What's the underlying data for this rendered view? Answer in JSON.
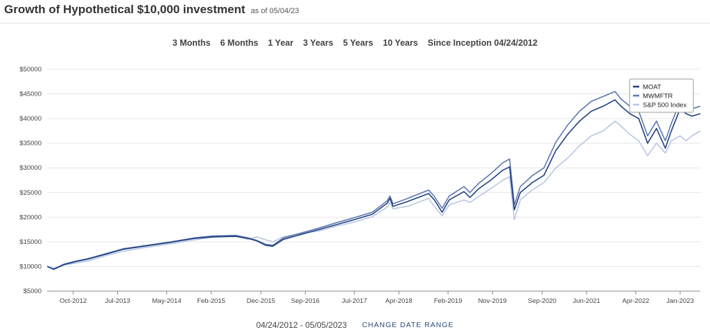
{
  "header": {
    "title": "Growth of Hypothetical $10,000 investment",
    "as_of": "as of 05/04/23"
  },
  "ranges": [
    "3 Months",
    "6 Months",
    "1 Year",
    "3 Years",
    "5 Years",
    "10 Years",
    "Since Inception 04/24/2012"
  ],
  "footer": {
    "date_range": "04/24/2012 - 05/05/2023",
    "change_label": "CHANGE DATE RANGE"
  },
  "colors": {
    "MOAT": "#1f3f7f",
    "MWMFTR": "#5b77b0",
    "SP500": "#b7c6e2"
  },
  "chart_data": {
    "type": "line",
    "title": "",
    "xlabel": "",
    "ylabel": "",
    "ylim": [
      5000,
      50000
    ],
    "yticks": [
      5000,
      10000,
      15000,
      20000,
      25000,
      30000,
      35000,
      40000,
      45000,
      50000
    ],
    "ytick_labels": [
      "$5000",
      "$10000",
      "$15000",
      "$20000",
      "$25000",
      "$30000",
      "$35000",
      "$40000",
      "$45000",
      "$50000"
    ],
    "xlim": [
      2012.31,
      2023.34
    ],
    "xticks": [
      {
        "x": 2012.75,
        "label": "Oct-2012"
      },
      {
        "x": 2013.5,
        "label": "Jul-2013"
      },
      {
        "x": 2014.33,
        "label": "May-2014"
      },
      {
        "x": 2015.08,
        "label": "Feb-2015"
      },
      {
        "x": 2015.92,
        "label": "Dec-2015"
      },
      {
        "x": 2016.67,
        "label": "Sep-2016"
      },
      {
        "x": 2017.5,
        "label": "Jul-2017"
      },
      {
        "x": 2018.25,
        "label": "Apr-2018"
      },
      {
        "x": 2019.08,
        "label": "Feb-2019"
      },
      {
        "x": 2019.83,
        "label": "Nov-2019"
      },
      {
        "x": 2020.67,
        "label": "Sep-2020"
      },
      {
        "x": 2021.42,
        "label": "Jun-2021"
      },
      {
        "x": 2022.25,
        "label": "Apr-2022"
      },
      {
        "x": 2023.0,
        "label": "Jan-2023"
      }
    ],
    "grid": true,
    "legend_position": "top-right",
    "series": [
      {
        "name": "MOAT",
        "color": "#1f3f7f",
        "points": [
          [
            2012.31,
            10000
          ],
          [
            2012.42,
            9400
          ],
          [
            2012.6,
            10400
          ],
          [
            2012.8,
            11000
          ],
          [
            2013.0,
            11500
          ],
          [
            2013.3,
            12500
          ],
          [
            2013.6,
            13500
          ],
          [
            2014.0,
            14200
          ],
          [
            2014.4,
            14900
          ],
          [
            2014.8,
            15700
          ],
          [
            2015.1,
            16000
          ],
          [
            2015.5,
            16100
          ],
          [
            2015.7,
            15700
          ],
          [
            2015.85,
            15200
          ],
          [
            2016.0,
            14300
          ],
          [
            2016.12,
            14100
          ],
          [
            2016.3,
            15500
          ],
          [
            2016.6,
            16500
          ],
          [
            2016.9,
            17500
          ],
          [
            2017.2,
            18500
          ],
          [
            2017.5,
            19500
          ],
          [
            2017.8,
            20600
          ],
          [
            2018.05,
            22800
          ],
          [
            2018.1,
            23800
          ],
          [
            2018.15,
            22200
          ],
          [
            2018.4,
            23200
          ],
          [
            2018.75,
            24800
          ],
          [
            2018.85,
            23500
          ],
          [
            2018.98,
            21000
          ],
          [
            2019.1,
            23500
          ],
          [
            2019.35,
            25200
          ],
          [
            2019.45,
            24000
          ],
          [
            2019.6,
            25800
          ],
          [
            2019.8,
            27500
          ],
          [
            2020.0,
            29500
          ],
          [
            2020.12,
            30200
          ],
          [
            2020.2,
            21500
          ],
          [
            2020.3,
            25000
          ],
          [
            2020.5,
            27000
          ],
          [
            2020.7,
            28500
          ],
          [
            2020.9,
            33500
          ],
          [
            2021.1,
            36800
          ],
          [
            2021.3,
            39500
          ],
          [
            2021.5,
            41500
          ],
          [
            2021.7,
            42500
          ],
          [
            2021.9,
            43800
          ],
          [
            2022.0,
            42500
          ],
          [
            2022.15,
            41000
          ],
          [
            2022.3,
            40000
          ],
          [
            2022.45,
            35000
          ],
          [
            2022.6,
            38000
          ],
          [
            2022.75,
            34000
          ],
          [
            2022.85,
            37500
          ],
          [
            2023.0,
            42000
          ],
          [
            2023.1,
            41000
          ],
          [
            2023.2,
            40500
          ],
          [
            2023.34,
            41000
          ]
        ]
      },
      {
        "name": "MWMFTR",
        "color": "#5b77b0",
        "points": [
          [
            2012.31,
            10000
          ],
          [
            2012.42,
            9500
          ],
          [
            2012.6,
            10500
          ],
          [
            2012.8,
            11100
          ],
          [
            2013.0,
            11600
          ],
          [
            2013.3,
            12600
          ],
          [
            2013.6,
            13600
          ],
          [
            2014.0,
            14300
          ],
          [
            2014.4,
            15000
          ],
          [
            2014.8,
            15800
          ],
          [
            2015.1,
            16200
          ],
          [
            2015.5,
            16300
          ],
          [
            2015.7,
            15800
          ],
          [
            2015.85,
            15300
          ],
          [
            2016.0,
            14500
          ],
          [
            2016.12,
            14300
          ],
          [
            2016.3,
            15800
          ],
          [
            2016.6,
            16800
          ],
          [
            2016.9,
            17800
          ],
          [
            2017.2,
            18900
          ],
          [
            2017.5,
            19900
          ],
          [
            2017.8,
            21000
          ],
          [
            2018.05,
            23300
          ],
          [
            2018.1,
            24300
          ],
          [
            2018.15,
            22700
          ],
          [
            2018.4,
            23800
          ],
          [
            2018.75,
            25500
          ],
          [
            2018.85,
            24200
          ],
          [
            2018.98,
            21800
          ],
          [
            2019.1,
            24300
          ],
          [
            2019.35,
            26200
          ],
          [
            2019.45,
            25000
          ],
          [
            2019.6,
            26900
          ],
          [
            2019.8,
            28800
          ],
          [
            2020.0,
            31000
          ],
          [
            2020.12,
            31800
          ],
          [
            2020.2,
            22500
          ],
          [
            2020.3,
            26200
          ],
          [
            2020.5,
            28400
          ],
          [
            2020.7,
            30000
          ],
          [
            2020.9,
            35200
          ],
          [
            2021.1,
            38700
          ],
          [
            2021.3,
            41500
          ],
          [
            2021.5,
            43500
          ],
          [
            2021.7,
            44500
          ],
          [
            2021.9,
            45500
          ],
          [
            2022.0,
            44000
          ],
          [
            2022.15,
            42500
          ],
          [
            2022.3,
            41500
          ],
          [
            2022.45,
            36500
          ],
          [
            2022.6,
            39500
          ],
          [
            2022.75,
            35500
          ],
          [
            2022.85,
            39000
          ],
          [
            2023.0,
            43500
          ],
          [
            2023.1,
            42500
          ],
          [
            2023.2,
            42000
          ],
          [
            2023.34,
            42500
          ]
        ]
      },
      {
        "name": "S&P 500 Index",
        "color": "#b7c6e2",
        "points": [
          [
            2012.31,
            10000
          ],
          [
            2012.42,
            9600
          ],
          [
            2012.6,
            10300
          ],
          [
            2012.8,
            10700
          ],
          [
            2013.0,
            11100
          ],
          [
            2013.3,
            12200
          ],
          [
            2013.6,
            13100
          ],
          [
            2014.0,
            13900
          ],
          [
            2014.4,
            14600
          ],
          [
            2014.8,
            15400
          ],
          [
            2015.1,
            15900
          ],
          [
            2015.5,
            16200
          ],
          [
            2015.7,
            15500
          ],
          [
            2015.85,
            16000
          ],
          [
            2016.0,
            15400
          ],
          [
            2016.12,
            15000
          ],
          [
            2016.3,
            16000
          ],
          [
            2016.6,
            16700
          ],
          [
            2016.9,
            17200
          ],
          [
            2017.2,
            18200
          ],
          [
            2017.5,
            19000
          ],
          [
            2017.8,
            20100
          ],
          [
            2018.05,
            22000
          ],
          [
            2018.1,
            23000
          ],
          [
            2018.15,
            21700
          ],
          [
            2018.4,
            22200
          ],
          [
            2018.75,
            23800
          ],
          [
            2018.85,
            22200
          ],
          [
            2018.98,
            20300
          ],
          [
            2019.1,
            22500
          ],
          [
            2019.35,
            23500
          ],
          [
            2019.45,
            23000
          ],
          [
            2019.6,
            24200
          ],
          [
            2019.8,
            25800
          ],
          [
            2020.0,
            27500
          ],
          [
            2020.12,
            28200
          ],
          [
            2020.2,
            19500
          ],
          [
            2020.3,
            23500
          ],
          [
            2020.5,
            25500
          ],
          [
            2020.7,
            27000
          ],
          [
            2020.9,
            30000
          ],
          [
            2021.1,
            32000
          ],
          [
            2021.3,
            34500
          ],
          [
            2021.5,
            36500
          ],
          [
            2021.7,
            37500
          ],
          [
            2021.9,
            39500
          ],
          [
            2022.0,
            38500
          ],
          [
            2022.15,
            36800
          ],
          [
            2022.3,
            35500
          ],
          [
            2022.45,
            32500
          ],
          [
            2022.6,
            35000
          ],
          [
            2022.75,
            33000
          ],
          [
            2022.85,
            35500
          ],
          [
            2023.0,
            36500
          ],
          [
            2023.1,
            35500
          ],
          [
            2023.2,
            36500
          ],
          [
            2023.34,
            37500
          ]
        ]
      }
    ]
  }
}
